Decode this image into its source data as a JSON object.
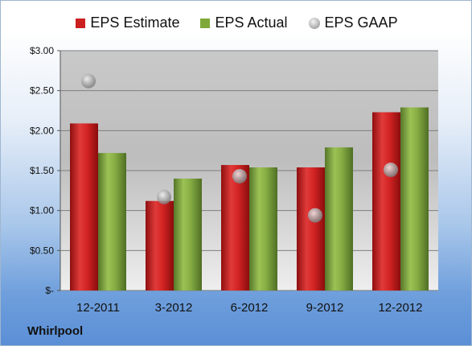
{
  "company": "Whirlpool",
  "chart_data": {
    "type": "bar",
    "categories": [
      "12-2011",
      "3-2012",
      "6-2012",
      "9-2012",
      "12-2012"
    ],
    "series": [
      {
        "name": "EPS Estimate",
        "values": [
          2.09,
          1.12,
          1.57,
          1.54,
          2.23
        ],
        "color": "#cc1f1f"
      },
      {
        "name": "EPS Actual",
        "values": [
          1.72,
          1.4,
          1.54,
          1.79,
          2.29
        ],
        "color": "#7fa83a"
      }
    ],
    "scatter_series": {
      "name": "EPS GAAP",
      "values": [
        2.62,
        1.17,
        1.43,
        0.94,
        1.51
      ],
      "color": "#a8a8a8"
    },
    "y_ticks": [
      "$-",
      "$0.50",
      "$1.00",
      "$1.50",
      "$2.00",
      "$2.50",
      "$3.00"
    ],
    "ylim": [
      0,
      3
    ],
    "grid": true,
    "legend_position": "top"
  }
}
